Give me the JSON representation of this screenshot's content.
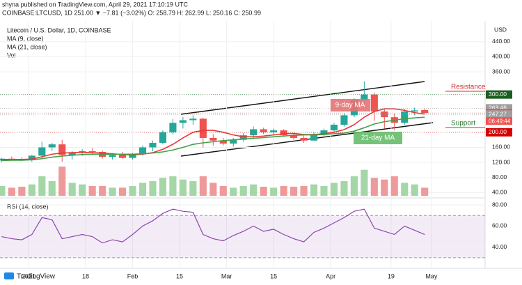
{
  "header": {
    "published": "shyna published on TradingView.com, April 29, 2021 17:10:19 UTC",
    "symbol_line": "COINBASE:LTCUSD, 1D 251.00 ▼ −7.81 (−3.02%) O: 258.79 H: 262.99 L: 250.16 C: 250.99"
  },
  "footer": {
    "brand": "TradingView"
  },
  "chart_data": {
    "type": "candlestick",
    "title": "Litecoin / U.S. Dollar, 1D, COINBASE",
    "indicator_labels": [
      "MA (9, close)",
      "MA (21, close)",
      "Vol"
    ],
    "currency": "USD",
    "x": [
      -8,
      -5,
      -2,
      1,
      4,
      7,
      10,
      13,
      16,
      19,
      22,
      25,
      28,
      31,
      34,
      37,
      40,
      43,
      46,
      49,
      52,
      55,
      58,
      61,
      64,
      67,
      70,
      73,
      76,
      79,
      82,
      85,
      88,
      91,
      94,
      97,
      100,
      103,
      106,
      109,
      112,
      115,
      118
    ],
    "open": [
      125,
      130,
      128,
      126,
      138,
      160,
      168,
      140,
      145,
      150,
      148,
      135,
      140,
      132,
      142,
      160,
      172,
      200,
      225,
      232,
      236,
      185,
      178,
      170,
      180,
      192,
      208,
      200,
      205,
      192,
      185,
      178,
      195,
      205,
      220,
      245,
      285,
      300,
      255,
      240,
      225,
      255,
      258.79
    ],
    "high": [
      132,
      136,
      134,
      140,
      175,
      172,
      180,
      150,
      155,
      158,
      152,
      145,
      148,
      145,
      165,
      178,
      205,
      235,
      240,
      245,
      238,
      195,
      185,
      185,
      198,
      215,
      212,
      210,
      208,
      198,
      192,
      200,
      210,
      225,
      250,
      290,
      335,
      305,
      262,
      250,
      262,
      265,
      262.99
    ],
    "low": [
      120,
      125,
      124,
      122,
      130,
      150,
      122,
      128,
      138,
      140,
      130,
      128,
      130,
      128,
      138,
      150,
      168,
      195,
      210,
      220,
      160,
      165,
      165,
      162,
      175,
      185,
      195,
      192,
      188,
      180,
      172,
      178,
      190,
      198,
      215,
      240,
      270,
      230,
      210,
      205,
      220,
      245,
      250.16
    ],
    "close": [
      130,
      128,
      126,
      138,
      160,
      168,
      140,
      145,
      150,
      148,
      135,
      140,
      132,
      142,
      160,
      172,
      200,
      225,
      232,
      236,
      185,
      178,
      170,
      180,
      192,
      208,
      200,
      205,
      192,
      185,
      178,
      195,
      205,
      220,
      245,
      285,
      300,
      255,
      240,
      225,
      255,
      258,
      250.99
    ],
    "volume": [
      30,
      25,
      28,
      35,
      60,
      45,
      90,
      40,
      35,
      30,
      30,
      25,
      25,
      30,
      40,
      45,
      55,
      60,
      50,
      45,
      60,
      40,
      30,
      25,
      30,
      35,
      28,
      25,
      30,
      28,
      30,
      35,
      30,
      40,
      45,
      60,
      80,
      55,
      50,
      60,
      40,
      35,
      25
    ],
    "series": [
      {
        "name": "9-day MA",
        "color": "#e53935",
        "values": [
          128,
          128,
          128,
          129,
          135,
          142,
          145,
          146,
          147,
          146,
          145,
          143,
          141,
          140,
          142,
          146,
          155,
          168,
          185,
          200,
          205,
          205,
          200,
          193,
          188,
          188,
          190,
          193,
          196,
          197,
          194,
          194,
          196,
          200,
          207,
          220,
          240,
          255,
          262,
          262,
          258,
          252,
          248
        ]
      },
      {
        "name": "21-day MA",
        "color": "#43a047",
        "values": [
          125,
          126,
          126,
          127,
          130,
          134,
          137,
          139,
          141,
          142,
          142,
          142,
          142,
          142,
          143,
          145,
          148,
          153,
          160,
          168,
          172,
          175,
          178,
          180,
          182,
          184,
          186,
          188,
          190,
          192,
          193,
          193,
          194,
          196,
          198,
          203,
          212,
          222,
          228,
          232,
          236,
          238,
          240
        ]
      }
    ],
    "rsi": {
      "label": "RSI (14, close)",
      "color": "#8e44ad",
      "values": [
        50,
        48,
        47,
        52,
        68,
        66,
        48,
        50,
        52,
        50,
        44,
        47,
        45,
        52,
        60,
        65,
        72,
        76,
        74,
        73,
        52,
        48,
        46,
        51,
        55,
        60,
        55,
        57,
        52,
        48,
        45,
        54,
        58,
        63,
        68,
        74,
        76,
        58,
        55,
        52,
        60,
        56,
        52
      ],
      "ylim": [
        20,
        86
      ],
      "yticks": [
        {
          "value": 80,
          "label": "80.00"
        },
        {
          "value": 60,
          "label": "60.00"
        },
        {
          "value": 40,
          "label": "40.00"
        }
      ],
      "band": [
        30,
        70
      ]
    },
    "ylim": [
      28,
      495
    ],
    "yticks": [
      {
        "value": 440,
        "label": "440.00"
      },
      {
        "value": 400,
        "label": "400.00"
      },
      {
        "value": 360,
        "label": "360.00"
      },
      {
        "value": 160,
        "label": "160.00"
      },
      {
        "value": 120,
        "label": "120.00"
      },
      {
        "value": 80,
        "label": "80.00"
      },
      {
        "value": 40,
        "label": "40.00"
      }
    ],
    "xlim": [
      -8.5,
      136
    ],
    "xticks": [
      {
        "value": 0,
        "label": "2021"
      },
      {
        "value": 17,
        "label": "18"
      },
      {
        "value": 31,
        "label": "Feb"
      },
      {
        "value": 45,
        "label": "15"
      },
      {
        "value": 59,
        "label": "Mar"
      },
      {
        "value": 73,
        "label": "15"
      },
      {
        "value": 90,
        "label": "Apr"
      },
      {
        "value": 108,
        "label": "19"
      },
      {
        "value": 120,
        "label": "May"
      }
    ],
    "price_boxes": [
      {
        "value": 300,
        "label": "300.00",
        "color": "#1b5e20"
      },
      {
        "value": 263.46,
        "label": "263.46",
        "color": "#9e9e9e"
      },
      {
        "value": 250.99,
        "label": "250.99",
        "color": "#ef5350"
      },
      {
        "value": 247.27,
        "label": "247.27",
        "color": "#9e9e9e"
      },
      {
        "value": 200,
        "label": "200.00",
        "color": "#d50000"
      }
    ],
    "countdown": "06:49:44",
    "annotations": {
      "resistance": "Resistance",
      "support": "Support"
    }
  }
}
